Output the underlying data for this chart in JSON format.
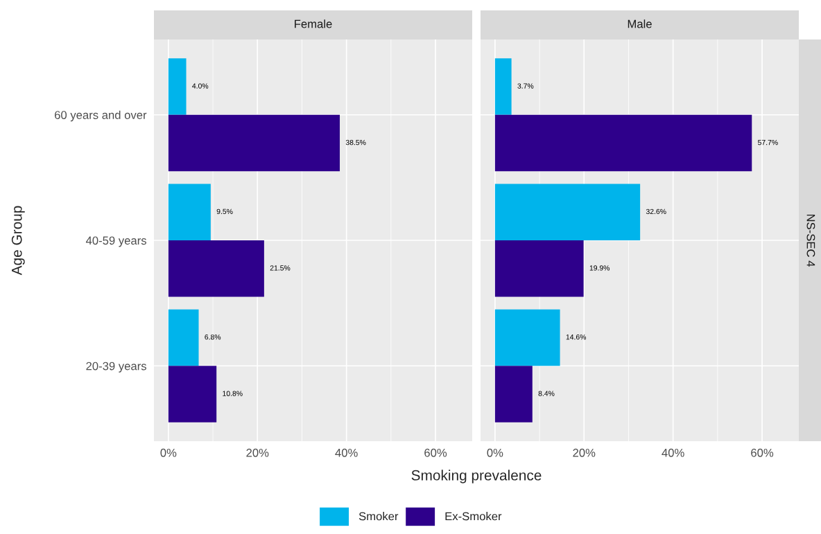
{
  "chart_data": [
    {
      "type": "bar",
      "orientation": "horizontal",
      "title": "Female",
      "xlabel": "Smoking prevalence",
      "ylabel": "Age Group",
      "categories": [
        "60 years and over",
        "40-59 years",
        "20-39 years"
      ],
      "series": [
        {
          "name": "Smoker",
          "color": "#00b4eb",
          "values": [
            4.0,
            9.5,
            6.8
          ],
          "value_labels": [
            "4.0%",
            "9.5%",
            "6.8%"
          ]
        },
        {
          "name": "Ex-Smoker",
          "color": "#2e008b",
          "values": [
            38.5,
            21.5,
            10.8
          ],
          "value_labels": [
            "38.5%",
            "21.5%",
            "10.8%"
          ]
        }
      ],
      "xlim": [
        -3.25,
        68.25
      ],
      "xticks": [
        {
          "value": 0,
          "label": "0%"
        },
        {
          "value": 20,
          "label": "20%"
        },
        {
          "value": 40,
          "label": "40%"
        },
        {
          "value": 60,
          "label": "60%"
        }
      ],
      "grid": true,
      "legend": "bottom"
    },
    {
      "type": "bar",
      "orientation": "horizontal",
      "title": "Male",
      "categories": [
        null,
        null,
        null
      ],
      "series": [
        {
          "color": "#00b4eb",
          "values": [
            3.7,
            32.6,
            14.6
          ],
          "value_labels": [
            "3.7%",
            "32.6%",
            "14.6%"
          ]
        },
        {
          "color": "#2e008b",
          "values": [
            57.7,
            19.9,
            8.4
          ],
          "value_labels": [
            "57.7%",
            "19.9%",
            "8.4%"
          ]
        }
      ],
      "xlim": [
        -3.25,
        68.25
      ],
      "xticks": [
        {
          "value": 0,
          "label": "0%"
        },
        {
          "value": 20,
          "label": "20%"
        },
        {
          "value": 40,
          "label": "40%"
        },
        {
          "value": 60,
          "label": "60%"
        }
      ],
      "grid": true,
      "tick_labels": "x",
      "annotations": [
        "NS-SEC 4"
      ]
    }
  ]
}
